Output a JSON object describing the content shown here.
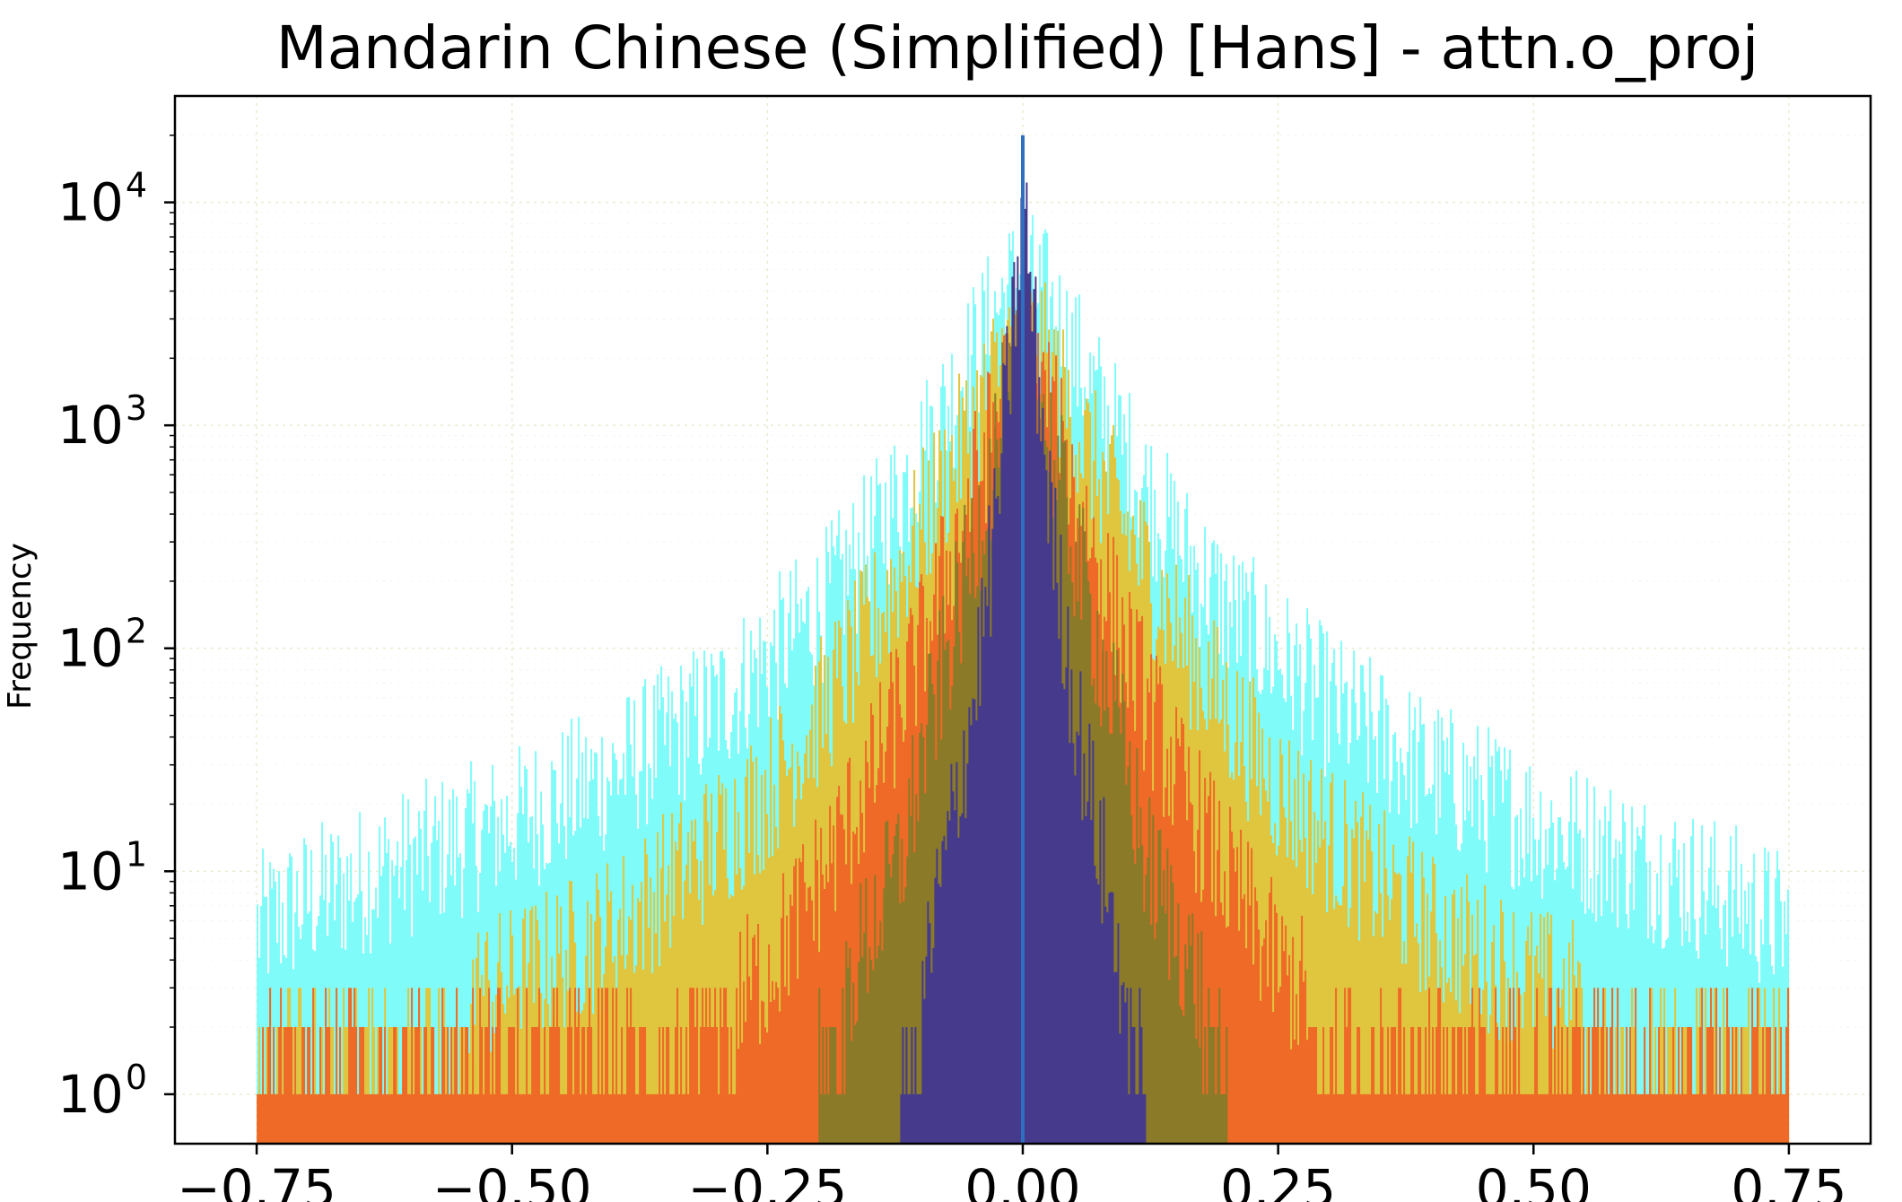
{
  "chart_data": {
    "type": "histogram",
    "title": "Mandarin Chinese (Simplified) [Hans] - attn.o_proj",
    "xlabel": "",
    "ylabel": "Frequency",
    "xlim": [
      -0.83,
      0.83
    ],
    "ylim": [
      0.6,
      30000
    ],
    "yscale": "log",
    "grid": true,
    "x_ticks": [
      {
        "value": -0.75,
        "label": "−0.75"
      },
      {
        "value": -0.5,
        "label": "−0.50"
      },
      {
        "value": -0.25,
        "label": "−0.25"
      },
      {
        "value": 0.0,
        "label": "0.00"
      },
      {
        "value": 0.25,
        "label": "0.25"
      },
      {
        "value": 0.5,
        "label": "0.50"
      },
      {
        "value": 0.75,
        "label": "0.75"
      }
    ],
    "y_ticks": [
      {
        "value": 1,
        "base": "10",
        "exp": "0"
      },
      {
        "value": 10,
        "base": "10",
        "exp": "1"
      },
      {
        "value": 100,
        "base": "10",
        "exp": "2"
      },
      {
        "value": 1000,
        "base": "10",
        "exp": "3"
      },
      {
        "value": 10000,
        "base": "10",
        "exp": "4"
      }
    ],
    "colors": {
      "grid": "#e8ecd0",
      "axis": "#000000"
    },
    "series": [
      {
        "color": "#7ffcfa",
        "x_range": [
          -0.75,
          0.75
        ],
        "x": [
          -0.75,
          -0.7,
          -0.6,
          -0.5,
          -0.4,
          -0.3,
          -0.2,
          -0.15,
          -0.1,
          -0.05,
          -0.02,
          0.0,
          0.02,
          0.05,
          0.1,
          0.15,
          0.2,
          0.3,
          0.4,
          0.5,
          0.6,
          0.7,
          0.75
        ],
        "y": [
          6,
          8,
          12,
          18,
          30,
          60,
          160,
          320,
          800,
          2200,
          4000,
          5000,
          4000,
          2200,
          800,
          320,
          160,
          60,
          30,
          18,
          12,
          8,
          6
        ]
      },
      {
        "color": "#e0c63e",
        "x_range": [
          -0.75,
          0.75
        ],
        "x": [
          -0.75,
          -0.6,
          -0.5,
          -0.4,
          -0.3,
          -0.25,
          -0.2,
          -0.15,
          -0.1,
          -0.05,
          -0.02,
          0.0,
          0.02,
          0.05,
          0.1,
          0.15,
          0.2,
          0.25,
          0.3,
          0.4,
          0.5,
          0.6,
          0.75
        ],
        "y": [
          1.5,
          2.5,
          3.5,
          6,
          15,
          25,
          55,
          130,
          380,
          1100,
          2200,
          3000,
          2200,
          1100,
          380,
          130,
          55,
          25,
          15,
          6,
          3.5,
          2.5,
          1.5
        ]
      },
      {
        "color": "#ee6a26",
        "x_range": [
          -0.75,
          0.75
        ],
        "x": [
          -0.75,
          -0.5,
          -0.35,
          -0.25,
          -0.2,
          -0.15,
          -0.1,
          -0.05,
          -0.02,
          0.0,
          0.02,
          0.05,
          0.1,
          0.15,
          0.2,
          0.25,
          0.35,
          0.5,
          0.75
        ],
        "y": [
          1,
          1,
          1.5,
          4,
          10,
          28,
          110,
          550,
          1500,
          2200,
          1500,
          550,
          110,
          28,
          10,
          4,
          1.5,
          1,
          1
        ]
      },
      {
        "color": "#8b7a28",
        "x_range": [
          -0.2,
          0.2
        ],
        "x": [
          -0.2,
          -0.15,
          -0.12,
          -0.1,
          -0.05,
          -0.02,
          0.0,
          0.02,
          0.05,
          0.1,
          0.12,
          0.15,
          0.2
        ],
        "y": [
          1.5,
          6,
          12,
          35,
          300,
          1200,
          2000,
          1200,
          300,
          35,
          12,
          6,
          1.5
        ]
      },
      {
        "color": "#453a8c",
        "x_range": [
          -0.12,
          0.12
        ],
        "x": [
          -0.12,
          -0.1,
          -0.08,
          -0.05,
          -0.03,
          -0.01,
          0.0,
          0.01,
          0.03,
          0.05,
          0.08,
          0.1,
          0.12
        ],
        "y": [
          1,
          3,
          10,
          60,
          300,
          3000,
          12000,
          3000,
          300,
          60,
          10,
          3,
          1
        ]
      }
    ],
    "peak": {
      "x": 0.0,
      "y": 20000,
      "color": "#2f6fbf"
    }
  }
}
